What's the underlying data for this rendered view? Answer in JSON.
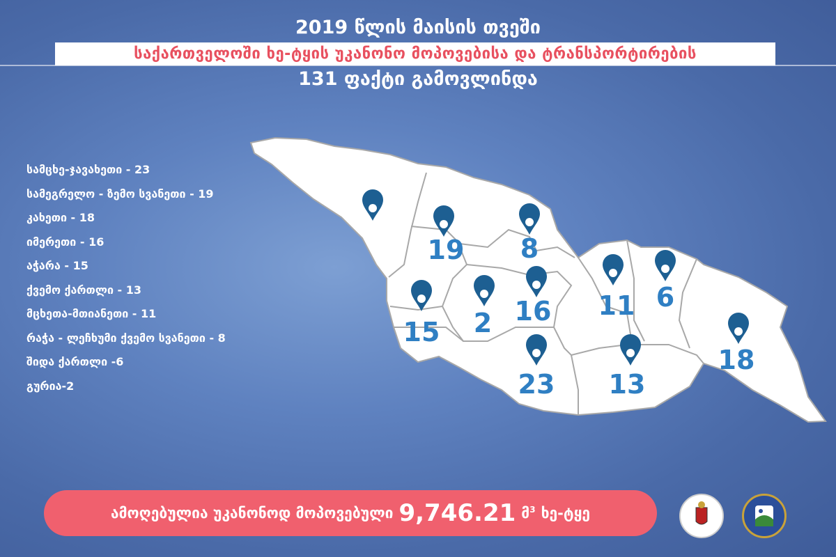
{
  "header": {
    "line1": "2019 წლის მაისის თვეში",
    "line2": "საქართველოში ხე-ტყის უკანონო მოპოვებისა და ტრანსპორტირების",
    "line3": "131 ფაქტი გამოვლინდა"
  },
  "legend": [
    "სამცხე-ჯავახეთი - 23",
    "სამეგრელო - ზემო სვანეთი - 19",
    "კახეთი -  18",
    "იმერეთი - 16",
    "აჭარა - 15",
    "ქვემო ქართლი - 13",
    "მცხეთა-მთიანეთი - 11",
    "რაჭა - ლეჩხუმი ქვემო სვანეთი - 8",
    "შიდა ქართლი -6",
    "გურია-2"
  ],
  "map": {
    "pin_color": "#1d5f92",
    "number_color": "#2f7fc3",
    "labels": [
      "19",
      "8",
      "15",
      "2",
      "16",
      "11",
      "6",
      "18",
      "23",
      "13"
    ]
  },
  "banner": {
    "prefix": "ამოღებულია უკანონოდ მოპოვებული",
    "amount": "9,746.21",
    "unit": "მ",
    "unit_sup": "3",
    "suffix": "ხე-ტყე"
  }
}
